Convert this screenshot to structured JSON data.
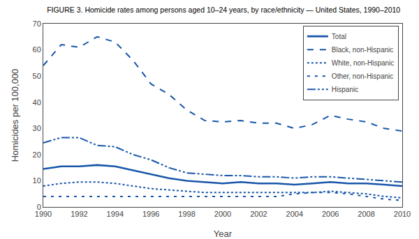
{
  "chart_data": {
    "type": "line",
    "title": "FIGURE 3. Homicide rates among persons aged 10–24 years, by race/ethnicity — United States, 1990–2010",
    "x_label": "Year",
    "y_label": "Homicides per 100,000",
    "x": [
      1990,
      1991,
      1992,
      1993,
      1994,
      1995,
      1996,
      1997,
      1998,
      1999,
      2000,
      2001,
      2002,
      2003,
      2004,
      2005,
      2006,
      2007,
      2008,
      2009,
      2010
    ],
    "series": [
      {
        "name": "Total",
        "color": "#1756a9",
        "line_style": "solid",
        "values": [
          14.5,
          15.5,
          15.5,
          16.0,
          15.5,
          14.0,
          12.5,
          11.0,
          10.0,
          9.5,
          9.0,
          9.5,
          9.0,
          9.0,
          8.5,
          9.0,
          9.5,
          9.0,
          9.0,
          8.5,
          8.0
        ]
      },
      {
        "name": "Black, non-Hispanic",
        "color": "#1756a9",
        "line_style": "dashed",
        "values": [
          54.0,
          62.0,
          61.0,
          65.0,
          63.0,
          56.0,
          47.0,
          43.0,
          37.0,
          33.0,
          32.5,
          33.0,
          32.0,
          32.0,
          30.0,
          31.5,
          35.0,
          33.5,
          32.5,
          30.0,
          29.0
        ]
      },
      {
        "name": "White, non-Hispanic",
        "color": "#1756a9",
        "line_style": "dotted",
        "values": [
          8.0,
          9.0,
          9.5,
          9.5,
          9.0,
          8.0,
          7.0,
          6.5,
          6.0,
          5.5,
          5.5,
          5.5,
          5.5,
          5.5,
          5.5,
          5.5,
          6.0,
          5.5,
          5.0,
          4.0,
          3.5
        ]
      },
      {
        "name": "Other, non-Hispanic",
        "color": "#1756a9",
        "line_style": "loosely_dashed",
        "values": [
          4.0,
          4.0,
          4.0,
          4.0,
          4.0,
          4.0,
          4.0,
          4.0,
          4.0,
          4.0,
          4.0,
          4.0,
          4.0,
          4.0,
          5.0,
          5.5,
          5.5,
          5.0,
          4.0,
          3.0,
          2.5
        ]
      },
      {
        "name": "Hispanic",
        "color": "#1756a9",
        "line_style": "dash_dot_dot",
        "values": [
          24.5,
          26.5,
          26.5,
          23.5,
          23.0,
          20.0,
          18.0,
          15.0,
          13.0,
          12.5,
          12.0,
          12.0,
          11.5,
          11.5,
          11.0,
          11.5,
          11.5,
          11.0,
          10.5,
          10.0,
          9.5
        ]
      }
    ],
    "xlim": [
      1990,
      2010
    ],
    "xticks": [
      1990,
      1992,
      1994,
      1996,
      1998,
      2000,
      2002,
      2004,
      2006,
      2008,
      2010
    ],
    "ylim": [
      0,
      70
    ],
    "yticks": [
      0,
      10,
      20,
      30,
      40,
      50,
      60,
      70
    ],
    "grid": false,
    "legend": "upper right"
  }
}
